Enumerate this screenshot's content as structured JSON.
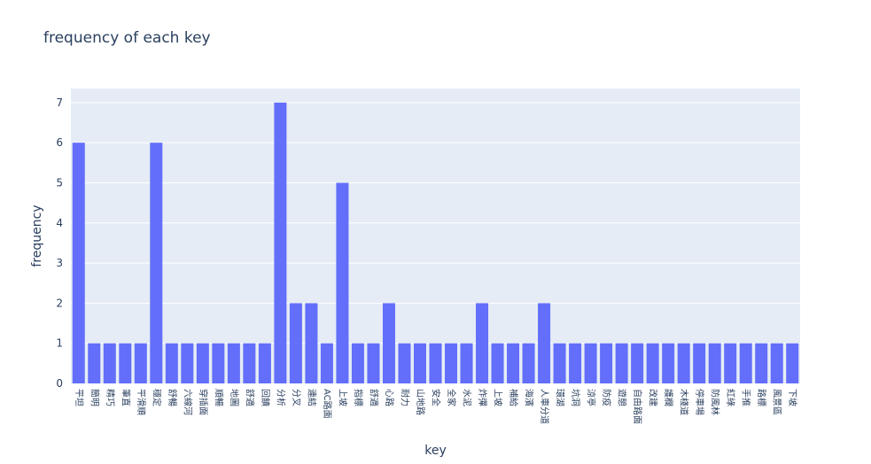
{
  "chart_data": {
    "type": "bar",
    "title": "frequency of each key",
    "xlabel": "key",
    "ylabel": "frequency",
    "ylim": [
      0,
      7.35
    ],
    "yticks": [
      0,
      1,
      2,
      3,
      4,
      5,
      6,
      7
    ],
    "grid": true,
    "bar_color": "#636efa",
    "plot_bg": "#e5ecf6",
    "categories": [
      "平坦",
      "簡明",
      "精巧",
      "筆直",
      "平滑順",
      "穩定",
      "舒暢",
      "六線河",
      "穿插面",
      "順暢",
      "地圖",
      "舒適",
      "回饋",
      "分析",
      "分叉",
      "連結",
      "AC路面",
      "上坡",
      "指標",
      "舒適",
      "心路",
      "耐力",
      "山地路",
      "安全",
      "全家",
      "水泥",
      "炸彈",
      "上坡",
      "補給",
      "海濱",
      "人車分道",
      "環湖",
      "坑洞",
      "涼亭",
      "防疫",
      "遊憩",
      "自由路面",
      "改建",
      "護欄",
      "木棧道",
      "停車場",
      "防風林",
      "紅綠",
      "手推",
      "路標",
      "風景區",
      "下坡"
    ],
    "values": [
      6,
      1,
      1,
      1,
      1,
      6,
      1,
      1,
      1,
      1,
      1,
      1,
      1,
      7,
      2,
      2,
      1,
      5,
      1,
      1,
      2,
      1,
      1,
      1,
      1,
      1,
      2,
      1,
      1,
      1,
      2,
      1,
      1,
      1,
      1,
      1,
      1,
      1,
      1,
      1,
      1,
      1,
      1,
      1,
      1,
      1,
      1
    ]
  }
}
